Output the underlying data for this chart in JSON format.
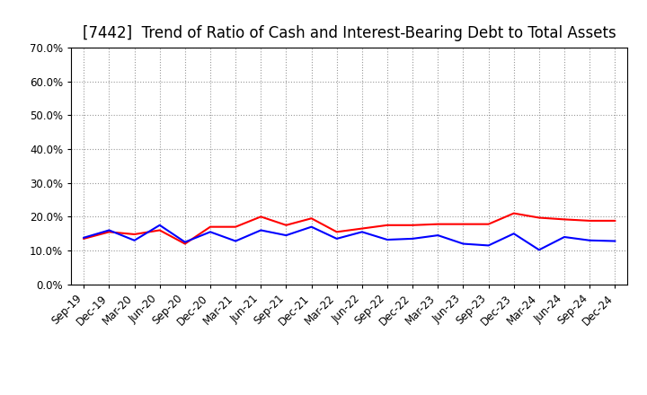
{
  "title": "[7442]  Trend of Ratio of Cash and Interest-Bearing Debt to Total Assets",
  "x_labels": [
    "Sep-19",
    "Dec-19",
    "Mar-20",
    "Jun-20",
    "Sep-20",
    "Dec-20",
    "Mar-21",
    "Jun-21",
    "Sep-21",
    "Dec-21",
    "Mar-22",
    "Jun-22",
    "Sep-22",
    "Dec-22",
    "Mar-23",
    "Jun-23",
    "Sep-23",
    "Dec-23",
    "Mar-24",
    "Jun-24",
    "Sep-24",
    "Dec-24"
  ],
  "cash": [
    0.135,
    0.155,
    0.148,
    0.16,
    0.12,
    0.17,
    0.17,
    0.2,
    0.175,
    0.195,
    0.155,
    0.165,
    0.175,
    0.175,
    0.178,
    0.178,
    0.178,
    0.21,
    0.197,
    0.192,
    0.188,
    0.188
  ],
  "interest_bearing_debt": [
    0.138,
    0.16,
    0.13,
    0.175,
    0.125,
    0.155,
    0.128,
    0.16,
    0.145,
    0.17,
    0.135,
    0.155,
    0.132,
    0.135,
    0.145,
    0.12,
    0.115,
    0.15,
    0.102,
    0.14,
    0.13,
    0.128
  ],
  "ylim": [
    0.0,
    0.7
  ],
  "yticks": [
    0.0,
    0.1,
    0.2,
    0.3,
    0.4,
    0.5,
    0.6,
    0.7
  ],
  "cash_color": "#ff0000",
  "ibd_color": "#0000ff",
  "line_width": 1.5,
  "background_color": "#ffffff",
  "grid_color": "#999999",
  "title_fontsize": 12,
  "tick_fontsize": 8.5,
  "legend_fontsize": 10
}
